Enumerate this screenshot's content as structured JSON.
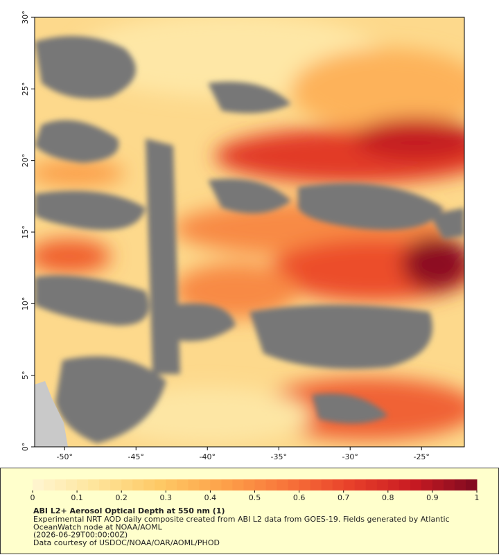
{
  "map": {
    "xlim": [
      -52.1,
      -22
    ],
    "ylim": [
      0,
      30
    ],
    "xticks": [
      {
        "value": -50,
        "label": "-50°"
      },
      {
        "value": -45,
        "label": "-45°"
      },
      {
        "value": -40,
        "label": "-40°"
      },
      {
        "value": -35,
        "label": "-35°"
      },
      {
        "value": -30,
        "label": "-30°"
      },
      {
        "value": -25,
        "label": "-25°"
      }
    ],
    "yticks": [
      {
        "value": 0,
        "label": "0°"
      },
      {
        "value": 5,
        "label": "5°"
      },
      {
        "value": 10,
        "label": "10°"
      },
      {
        "value": 15,
        "label": "15°"
      },
      {
        "value": 20,
        "label": "20°"
      },
      {
        "value": 25,
        "label": "25°"
      },
      {
        "value": 30,
        "label": "30°"
      }
    ]
  },
  "colorbar": {
    "lim": [
      0,
      1
    ],
    "ticks": [
      0,
      0.1,
      0.2,
      0.3,
      0.4,
      0.5,
      0.6,
      0.7,
      0.8,
      0.9,
      1
    ],
    "colormap": [
      "#fff6d2",
      "#fee49a",
      "#fec965",
      "#fda24a",
      "#f8743a",
      "#e8402a",
      "#c81a22",
      "#7d0a20"
    ]
  },
  "legend": {
    "title": "ABI L2+ Aerosol Optical Depth at 550 nm (1)",
    "lines": [
      "Experimental NRT AOD daily composite created from ABI L2 data from GOES-19. Fields generated by Atlantic",
      "OceanWatch node at NOAA/AOML",
      "(2026-06-29T00:00:00Z)",
      "Data courtesy of USDOC/NOAA/OAR/AOML/PHOD"
    ]
  }
}
